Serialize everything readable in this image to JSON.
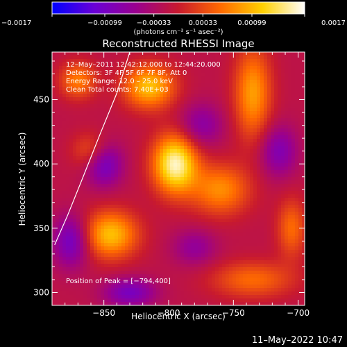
{
  "chart_data": {
    "type": "heatmap",
    "title": "Reconstructed RHESSI Image",
    "xlabel": "Heliocentric X (arcsec)",
    "ylabel": "Heliocentric Y (arcsec)",
    "xlim": [
      -890,
      -695
    ],
    "ylim": [
      290,
      487
    ],
    "x_ticks": [
      -850,
      -800,
      -750,
      -700
    ],
    "x_tick_labels": [
      "−850",
      "−800",
      "−750",
      "−700"
    ],
    "y_ticks": [
      300,
      350,
      400,
      450
    ],
    "y_tick_labels": [
      "300",
      "350",
      "400",
      "450"
    ],
    "colorbar": {
      "label": "(photons cm⁻² s⁻¹ asec⁻²)",
      "range": [
        -0.0017,
        0.0017
      ],
      "ticks": [
        -0.0017,
        -0.00099,
        -0.00033,
        0.00033,
        0.00099,
        0.0017
      ],
      "tick_labels": [
        "−0.0017",
        "−0.00099",
        "−0.00033",
        "0.00033",
        "0.00099",
        "0.0017"
      ],
      "colors": [
        "#0000ff",
        "#6a00d6",
        "#9a008e",
        "#c81a2e",
        "#ff6a00",
        "#ffd000",
        "#ffffff"
      ]
    },
    "annotations": [
      "12–May–2011 12:42:12.000 to 12:44:20.000",
      "Detectors: 3F 4F 5F 6F 7F 8F, Att 0",
      "Energy Range: 12.0 – 25.0 keV",
      "Clean    Total counts: 7.40E+03"
    ],
    "peak_text": "Position of Peak = [−794,400]",
    "peak": [
      -794,
      400
    ],
    "sources": [
      {
        "x": -795,
        "y": 400,
        "sx": 12,
        "sy": 16,
        "amp": 0.0017
      },
      {
        "x": -845,
        "y": 345,
        "sx": 15,
        "sy": 13,
        "amp": 0.0012
      },
      {
        "x": -815,
        "y": 460,
        "sx": 14,
        "sy": 12,
        "amp": 0.0012
      },
      {
        "x": -735,
        "y": 455,
        "sx": 10,
        "sy": 25,
        "amp": 0.001
      },
      {
        "x": -760,
        "y": 380,
        "sx": 16,
        "sy": 14,
        "amp": 0.0009
      },
      {
        "x": -870,
        "y": 465,
        "sx": 10,
        "sy": 10,
        "amp": 0.0008
      },
      {
        "x": -860,
        "y": 410,
        "sx": 10,
        "sy": 10,
        "amp": 0.0006
      },
      {
        "x": -735,
        "y": 310,
        "sx": 22,
        "sy": 10,
        "amp": 0.0007
      },
      {
        "x": -705,
        "y": 350,
        "sx": 8,
        "sy": 16,
        "amp": 0.0007
      },
      {
        "x": -850,
        "y": 400,
        "sx": 10,
        "sy": 12,
        "amp": -0.0009
      },
      {
        "x": -875,
        "y": 340,
        "sx": 10,
        "sy": 14,
        "amp": -0.0009
      },
      {
        "x": -830,
        "y": 300,
        "sx": 14,
        "sy": 8,
        "amp": -0.0008
      },
      {
        "x": -775,
        "y": 430,
        "sx": 12,
        "sy": 12,
        "amp": -0.0006
      },
      {
        "x": -715,
        "y": 410,
        "sx": 10,
        "sy": 14,
        "amp": -0.0007
      },
      {
        "x": -780,
        "y": 335,
        "sx": 12,
        "sy": 10,
        "amp": -0.0005
      }
    ],
    "limb_curve": [
      [
        -888,
        337
      ],
      [
        -878,
        360
      ],
      [
        -866,
        390
      ],
      [
        -853,
        423
      ],
      [
        -840,
        455
      ],
      [
        -830,
        487
      ]
    ],
    "grid": false
  },
  "footer_date": "11–May–2022 10:47"
}
